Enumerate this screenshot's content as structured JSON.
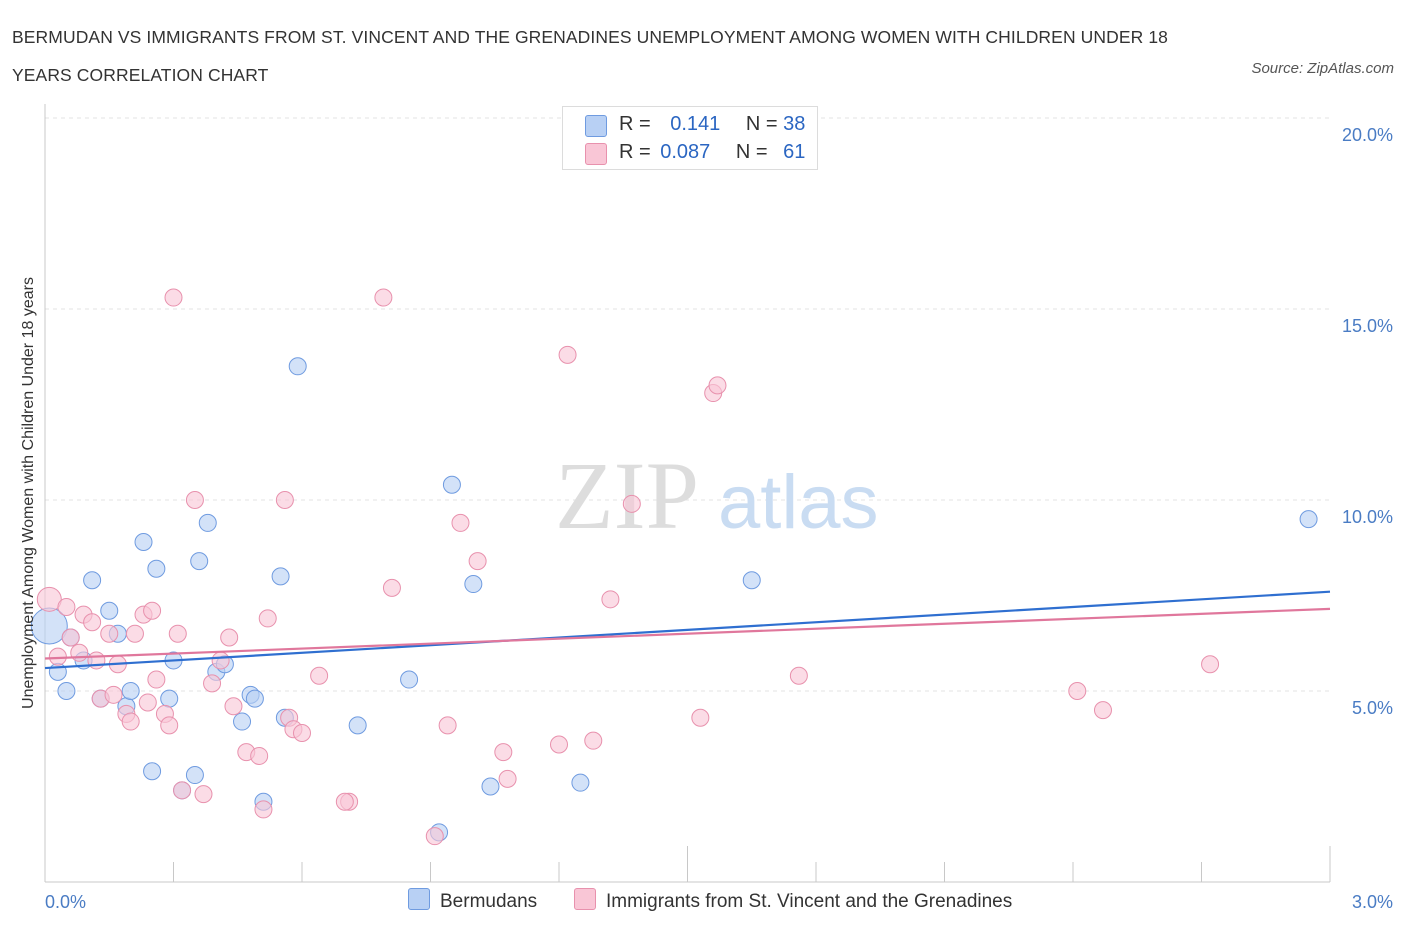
{
  "title": "BERMUDAN VS IMMIGRANTS FROM ST. VINCENT AND THE GRENADINES UNEMPLOYMENT AMONG WOMEN WITH CHILDREN UNDER 18 YEARS CORRELATION CHART",
  "source": "Source: ZipAtlas.com",
  "watermark": {
    "zip": "ZIP",
    "atlas": "atlas"
  },
  "legend": {
    "r_label": "R =",
    "n_label": "N =",
    "rows": [
      {
        "r": "0.141",
        "n": "38",
        "color": "#b8d0f4",
        "edge": "#6f9be0"
      },
      {
        "r": "0.087",
        "n": "61",
        "color": "#f9c6d6",
        "edge": "#e891ad"
      }
    ]
  },
  "bottom_legend": [
    "Bermudans",
    "Immigrants from St. Vincent and the Grenadines"
  ],
  "chart_data": {
    "type": "scatter",
    "title": "BERMUDAN VS IMMIGRANTS FROM ST. VINCENT AND THE GRENADINES UNEMPLOYMENT AMONG WOMEN WITH CHILDREN UNDER 18 YEARS CORRELATION CHART",
    "xlabel": "",
    "ylabel": "Unemployment Among Women with Children Under 18 years",
    "xlim": [
      0,
      3.0
    ],
    "ylim": [
      0,
      20.0
    ],
    "x_tick_labels": [
      "0.0%",
      "3.0%"
    ],
    "y_ticks": [
      5,
      10,
      15,
      20
    ],
    "y_tick_labels": [
      "5.0%",
      "10.0%",
      "15.0%",
      "20.0%"
    ],
    "grid": "horizontal dashed",
    "legend_placement": "top-center",
    "series": [
      {
        "name": "Bermudans",
        "color": "#6f9be0",
        "fill": "#b8d0f4",
        "trend_color": "#2f6fd0",
        "trend": {
          "x": [
            0,
            3.0
          ],
          "y": [
            5.6,
            7.6
          ]
        },
        "points": [
          [
            0.01,
            6.7
          ],
          [
            0.03,
            5.5
          ],
          [
            0.05,
            5.0
          ],
          [
            0.06,
            6.4
          ],
          [
            0.09,
            5.8
          ],
          [
            0.11,
            7.9
          ],
          [
            0.13,
            4.8
          ],
          [
            0.15,
            7.1
          ],
          [
            0.17,
            6.5
          ],
          [
            0.19,
            4.6
          ],
          [
            0.2,
            5.0
          ],
          [
            0.23,
            8.9
          ],
          [
            0.25,
            2.9
          ],
          [
            0.26,
            8.2
          ],
          [
            0.29,
            4.8
          ],
          [
            0.3,
            5.8
          ],
          [
            0.32,
            2.4
          ],
          [
            0.35,
            2.8
          ],
          [
            0.36,
            8.4
          ],
          [
            0.38,
            9.4
          ],
          [
            0.4,
            5.5
          ],
          [
            0.42,
            5.7
          ],
          [
            0.46,
            4.2
          ],
          [
            0.48,
            4.9
          ],
          [
            0.49,
            4.8
          ],
          [
            0.51,
            2.1
          ],
          [
            0.55,
            8.0
          ],
          [
            0.56,
            4.3
          ],
          [
            0.59,
            13.5
          ],
          [
            0.73,
            4.1
          ],
          [
            0.85,
            5.3
          ],
          [
            0.92,
            1.3
          ],
          [
            0.95,
            10.4
          ],
          [
            1.0,
            7.8
          ],
          [
            1.04,
            2.5
          ],
          [
            1.25,
            2.6
          ],
          [
            1.65,
            7.9
          ],
          [
            2.95,
            9.5
          ]
        ]
      },
      {
        "name": "Immigrants from St. Vincent and the Grenadines",
        "color": "#e891ad",
        "fill": "#f9c6d6",
        "trend_color": "#e0779c",
        "trend": {
          "x": [
            0,
            3.0
          ],
          "y": [
            5.85,
            7.15
          ]
        },
        "points": [
          [
            0.01,
            7.4
          ],
          [
            0.03,
            5.9
          ],
          [
            0.05,
            7.2
          ],
          [
            0.06,
            6.4
          ],
          [
            0.08,
            6.0
          ],
          [
            0.09,
            7.0
          ],
          [
            0.11,
            6.8
          ],
          [
            0.12,
            5.8
          ],
          [
            0.13,
            4.8
          ],
          [
            0.15,
            6.5
          ],
          [
            0.16,
            4.9
          ],
          [
            0.17,
            5.7
          ],
          [
            0.19,
            4.4
          ],
          [
            0.2,
            4.2
          ],
          [
            0.21,
            6.5
          ],
          [
            0.23,
            7.0
          ],
          [
            0.24,
            4.7
          ],
          [
            0.25,
            7.1
          ],
          [
            0.26,
            5.3
          ],
          [
            0.28,
            4.4
          ],
          [
            0.29,
            4.1
          ],
          [
            0.3,
            15.3
          ],
          [
            0.31,
            6.5
          ],
          [
            0.32,
            2.4
          ],
          [
            0.35,
            10.0
          ],
          [
            0.37,
            2.3
          ],
          [
            0.39,
            5.2
          ],
          [
            0.41,
            5.8
          ],
          [
            0.43,
            6.4
          ],
          [
            0.44,
            4.6
          ],
          [
            0.47,
            3.4
          ],
          [
            0.5,
            3.3
          ],
          [
            0.51,
            1.9
          ],
          [
            0.52,
            6.9
          ],
          [
            0.56,
            10.0
          ],
          [
            0.57,
            4.3
          ],
          [
            0.58,
            4.0
          ],
          [
            0.6,
            3.9
          ],
          [
            0.64,
            5.4
          ],
          [
            0.71,
            2.1
          ],
          [
            0.79,
            15.3
          ],
          [
            0.81,
            7.7
          ],
          [
            0.91,
            1.2
          ],
          [
            0.94,
            4.1
          ],
          [
            0.97,
            9.4
          ],
          [
            1.01,
            8.4
          ],
          [
            1.07,
            3.4
          ],
          [
            1.08,
            2.7
          ],
          [
            1.2,
            3.6
          ],
          [
            1.22,
            13.8
          ],
          [
            1.28,
            3.7
          ],
          [
            1.32,
            7.4
          ],
          [
            1.37,
            9.9
          ],
          [
            1.53,
            4.3
          ],
          [
            1.56,
            12.8
          ],
          [
            1.57,
            13.0
          ],
          [
            1.76,
            5.4
          ],
          [
            2.41,
            5.0
          ],
          [
            2.47,
            4.5
          ],
          [
            2.72,
            5.7
          ],
          [
            0.7,
            2.1
          ]
        ]
      }
    ]
  }
}
